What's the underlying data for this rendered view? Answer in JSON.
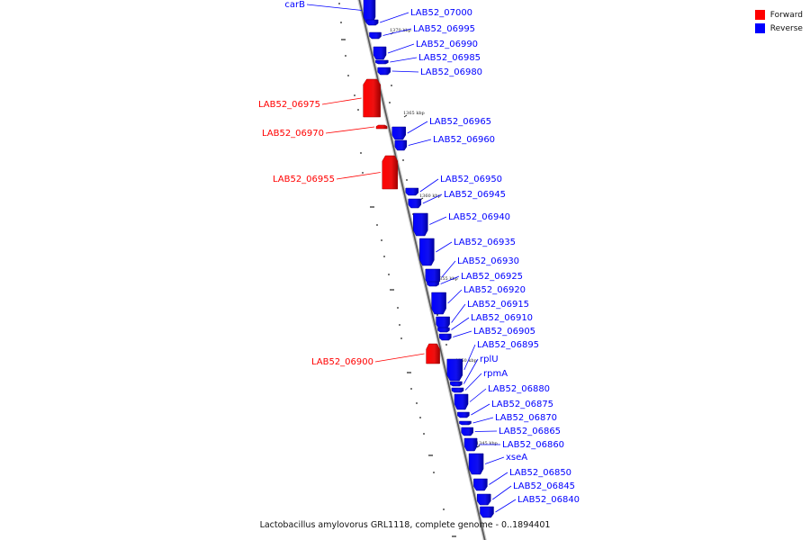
{
  "legend": {
    "forward_label": "Forward",
    "reverse_label": "Reverse",
    "forward_color": "#ff0000",
    "reverse_color": "#0000ff"
  },
  "caption": "Lactobacillus amylovorus GRL1118, complete genome  -  0..1894401",
  "ticks": [
    {
      "label": "1370 kbp"
    },
    {
      "label": "1365 kbp"
    },
    {
      "label": "1360 kbp"
    },
    {
      "label": "1355 kbp"
    },
    {
      "label": "1350 kbp"
    },
    {
      "label": "1345 kbp"
    }
  ],
  "genes": [
    {
      "name": "carB",
      "strand": "reverse"
    },
    {
      "name": "LAB52_07000",
      "strand": "reverse"
    },
    {
      "name": "LAB52_06995",
      "strand": "reverse"
    },
    {
      "name": "LAB52_06990",
      "strand": "reverse"
    },
    {
      "name": "LAB52_06985",
      "strand": "reverse"
    },
    {
      "name": "LAB52_06980",
      "strand": "reverse"
    },
    {
      "name": "LAB52_06975",
      "strand": "forward"
    },
    {
      "name": "LAB52_06970",
      "strand": "forward"
    },
    {
      "name": "LAB52_06965",
      "strand": "reverse"
    },
    {
      "name": "LAB52_06960",
      "strand": "reverse"
    },
    {
      "name": "LAB52_06955",
      "strand": "forward"
    },
    {
      "name": "LAB52_06950",
      "strand": "reverse"
    },
    {
      "name": "LAB52_06945",
      "strand": "reverse"
    },
    {
      "name": "LAB52_06940",
      "strand": "reverse"
    },
    {
      "name": "LAB52_06935",
      "strand": "reverse"
    },
    {
      "name": "LAB52_06930",
      "strand": "reverse"
    },
    {
      "name": "LAB52_06925",
      "strand": "reverse"
    },
    {
      "name": "LAB52_06920",
      "strand": "reverse"
    },
    {
      "name": "LAB52_06915",
      "strand": "reverse"
    },
    {
      "name": "LAB52_06910",
      "strand": "reverse"
    },
    {
      "name": "LAB52_06905",
      "strand": "reverse"
    },
    {
      "name": "LAB52_06900",
      "strand": "forward"
    },
    {
      "name": "LAB52_06895",
      "strand": "reverse"
    },
    {
      "name": "rplU",
      "strand": "reverse"
    },
    {
      "name": "rpmA",
      "strand": "reverse"
    },
    {
      "name": "LAB52_06880",
      "strand": "reverse"
    },
    {
      "name": "LAB52_06875",
      "strand": "reverse"
    },
    {
      "name": "LAB52_06870",
      "strand": "reverse"
    },
    {
      "name": "LAB52_06865",
      "strand": "reverse"
    },
    {
      "name": "LAB52_06860",
      "strand": "reverse"
    },
    {
      "name": "xseA",
      "strand": "reverse"
    },
    {
      "name": "LAB52_06850",
      "strand": "reverse"
    },
    {
      "name": "LAB52_06845",
      "strand": "reverse"
    },
    {
      "name": "LAB52_06840",
      "strand": "reverse"
    }
  ]
}
